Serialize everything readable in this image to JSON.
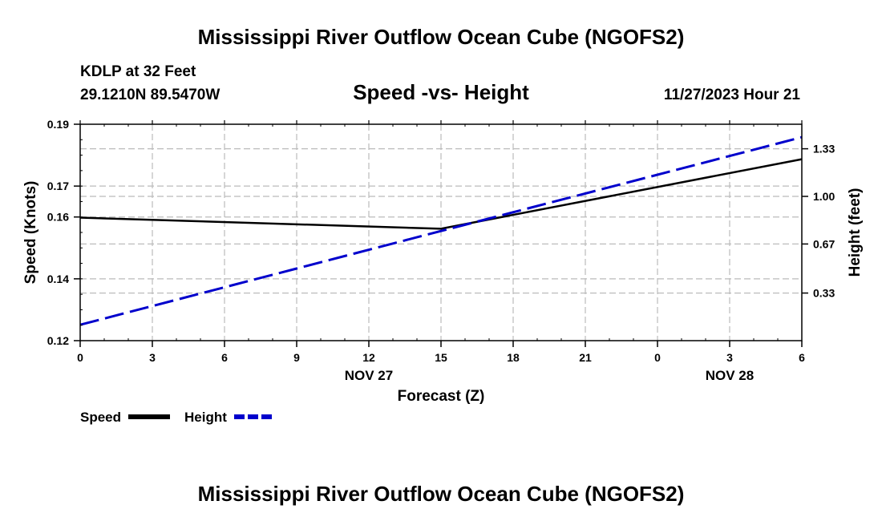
{
  "header": {
    "title": "Mississippi River Outflow Ocean Cube (NGOFS2)",
    "station": "KDLP at 32 Feet",
    "coords": "29.1210N  89.5470W",
    "subtitle": "Speed -vs- Height",
    "datetime": "11/27/2023 Hour 21"
  },
  "footer": {
    "title": "Mississippi River Outflow Ocean Cube (NGOFS2)"
  },
  "chart_data": {
    "type": "line",
    "title": "Speed -vs- Height",
    "xlabel": "Forecast (Z)",
    "ylabel": "Speed (Knots)",
    "y2label": "Height (feet)",
    "x_ticks": [
      "0",
      "3",
      "6",
      "9",
      "12",
      "15",
      "18",
      "21",
      "0",
      "3",
      "6"
    ],
    "x_hours": [
      0,
      3,
      6,
      9,
      12,
      15,
      18,
      21,
      24,
      27,
      30
    ],
    "x_xlim": [
      0,
      30
    ],
    "date_labels": [
      {
        "label": "NOV 27",
        "hour": 12
      },
      {
        "label": "NOV 28",
        "hour": 27
      }
    ],
    "y_ticks": [
      0.12,
      0.14,
      0.16,
      0.17,
      0.19
    ],
    "y_tick_labels": [
      "0.12",
      "0.14",
      "0.16",
      "0.17",
      "0.19"
    ],
    "ylim": [
      0.12,
      0.19
    ],
    "y2_ticks": [
      0.33,
      0.67,
      1.0,
      1.33
    ],
    "y2_tick_labels": [
      "0.33",
      "0.67",
      "1.00",
      "1.33"
    ],
    "y2lim": [
      0.0,
      1.5
    ],
    "grid": true,
    "series": [
      {
        "name": "Speed",
        "axis": "left",
        "color": "#000000",
        "dash": "solid",
        "x": [
          0,
          15,
          30
        ],
        "values": [
          0.1598,
          0.1562,
          0.1787
        ]
      },
      {
        "name": "Height",
        "axis": "right",
        "color": "#0000cc",
        "dash": "dashed",
        "x": [
          0,
          30
        ],
        "values": [
          0.11,
          1.41
        ]
      }
    ]
  },
  "legend": {
    "items": [
      {
        "label": "Speed",
        "color": "#000000",
        "dash": "solid"
      },
      {
        "label": "Height",
        "color": "#0000cc",
        "dash": "dashed"
      }
    ]
  }
}
